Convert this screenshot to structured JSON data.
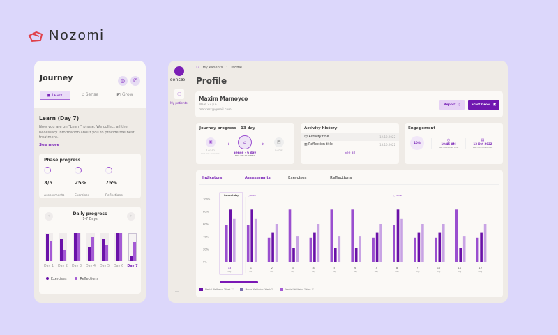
{
  "brand": {
    "name": "Nozomi"
  },
  "mobile": {
    "title": "Journey",
    "tabs": [
      {
        "label": "Learn",
        "active": true
      },
      {
        "label": "Sense"
      },
      {
        "label": "Grow"
      }
    ],
    "learn": {
      "title": "Learn (Day 7)",
      "text": "Now you are on \"Learn\" phase. We collect all the necessary information about you to provide the best treatment.",
      "see_more": "See more"
    },
    "phase": {
      "title": "Phase progress",
      "items": [
        {
          "value": "3/5",
          "label": "Assessments"
        },
        {
          "value": "25%",
          "label": "Exercises"
        },
        {
          "value": "75%",
          "label": "Reflections"
        }
      ]
    },
    "daily": {
      "title": "Daily progress",
      "subtitle": "1-7 Days",
      "days": [
        "Day 1",
        "Day 2",
        "Day 3",
        "Day 4",
        "Day 5",
        "Day 6",
        "Day 7"
      ],
      "current": "Day 7",
      "exercises": [
        95,
        80,
        100,
        50,
        78,
        100,
        18
      ],
      "reflections": [
        72,
        40,
        100,
        88,
        58,
        100,
        67
      ],
      "legend": [
        "Exercises",
        "Reflections"
      ]
    }
  },
  "dashboard": {
    "logo": "sensæ",
    "nav": {
      "my_patients": "My patients"
    },
    "breadcrumb": [
      "My Patients",
      "Profile"
    ],
    "title": "Profile",
    "patient": {
      "name": "Maxim Mamoyco",
      "meta": "Male 23 y.o.",
      "email": "mantest@gmail.com"
    },
    "buttons": {
      "report": "Report",
      "start_grow": "Start Grow"
    },
    "journey": {
      "title": "Journey progress - 13 day",
      "steps": [
        {
          "label": "Learn",
          "date": "Start date 10.10.2022"
        },
        {
          "label": "Sense - 6 day",
          "date": "Start date 13.10.2022"
        },
        {
          "label": "Grow"
        }
      ]
    },
    "activity": {
      "title": "Activity history",
      "items": [
        {
          "title": "Activity title",
          "date": "12.10.2022"
        },
        {
          "title": "Reflection title",
          "date": "13.10.2022"
        }
      ],
      "see_all": "See all"
    },
    "engagement": {
      "title": "Engagement",
      "percent": "10%",
      "time": "10:45 AM",
      "time_label": "Last connected time",
      "date": "13 Oct 2022",
      "date_label": "Last connected date"
    },
    "tabs": [
      "Indicators",
      "Assessments",
      "Exercises",
      "Reflections"
    ],
    "active_tab": "Indicators"
  },
  "colors": {
    "accent": "#7b18b5",
    "bg": "#dcd7fb",
    "series": [
      "#9a4fcf",
      "#6a12a8",
      "#c8a3e4"
    ]
  },
  "chart_data": {
    "type": "bar",
    "y_ticks": [
      "100%",
      "80%",
      "60%",
      "40%",
      "20%",
      "0%"
    ],
    "ylim": [
      0,
      100
    ],
    "current_day_label": "Current day",
    "phase_markers": [
      {
        "label": "Learn",
        "at": "1"
      },
      {
        "label": "Sense",
        "at": "8"
      }
    ],
    "categories": [
      "13",
      "1",
      "2",
      "3",
      "4",
      "5",
      "6",
      "7",
      "8",
      "9",
      "10",
      "11",
      "12"
    ],
    "category_sub": "day",
    "series": [
      {
        "name": "Mental Wellbeing \"Week 2\"",
        "values": [
          58,
          58,
          38,
          83,
          38,
          83,
          83,
          38,
          58,
          38,
          38,
          83,
          38
        ]
      },
      {
        "name": "Mental Wellbeing \"Week 1\"",
        "values": [
          83,
          83,
          46,
          22,
          46,
          22,
          22,
          46,
          83,
          46,
          46,
          22,
          46
        ]
      },
      {
        "name": "Mental Wellbeing \"Week 3\"",
        "values": [
          68,
          68,
          60,
          41,
          60,
          41,
          41,
          60,
          68,
          60,
          60,
          41,
          60
        ]
      }
    ],
    "legend": [
      "Mental Wellbeing \"Week 1\"",
      "Mental Wellbeing \"Week 2\"",
      "Mental Wellbeing \"Week 3\""
    ]
  }
}
